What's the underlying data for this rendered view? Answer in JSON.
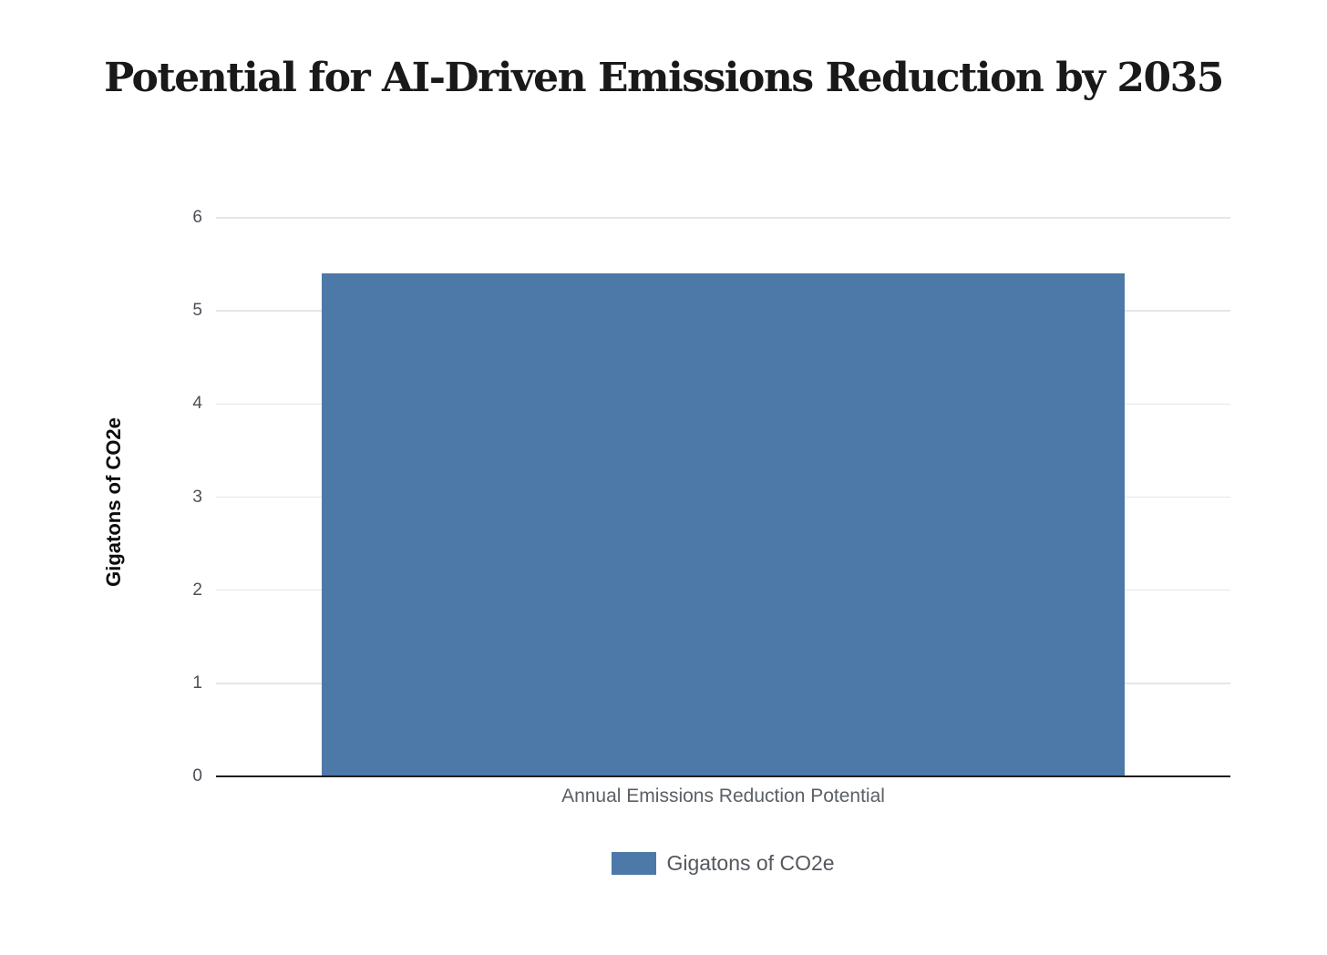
{
  "chart_data": {
    "type": "bar",
    "title": "Potential for AI-Driven Emissions Reduction by 2035",
    "categories": [
      "Annual Emissions Reduction Potential"
    ],
    "series": [
      {
        "name": "Gigatons of CO2e",
        "values": [
          5.4
        ]
      }
    ],
    "xlabel": "",
    "ylabel": "Gigatons of CO2e",
    "ylim": [
      0,
      6
    ],
    "yticks": [
      0,
      1,
      2,
      3,
      4,
      5,
      6
    ],
    "grid": true,
    "legend_position": "bottom",
    "colors": {
      "background": "#ffffff",
      "bar": "#4d79a8",
      "gridline": "#e4e6e9",
      "axis_line": "#1e1e1e",
      "tick_label": "#4c4f56",
      "category_label": "#5b6066",
      "legend_label": "#54585e",
      "title": "#191919"
    }
  }
}
